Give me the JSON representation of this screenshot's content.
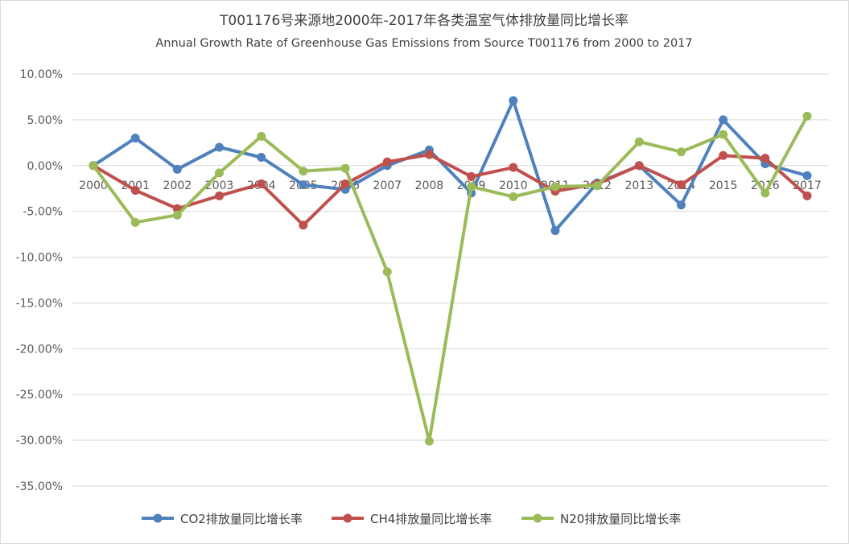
{
  "chart_data": {
    "type": "line",
    "title": "T001176号来源地2000年-2017年各类温室气体排放量同比增长率",
    "subtitle": "Annual Growth Rate of Greenhouse Gas Emissions from Source T001176 from 2000 to 2017",
    "xlabel": "",
    "ylabel": "",
    "ylim": [
      -0.35,
      0.1
    ],
    "y_ticks": [
      0.1,
      0.05,
      0.0,
      -0.05,
      -0.1,
      -0.15,
      -0.2,
      -0.25,
      -0.3,
      -0.35
    ],
    "y_tick_labels": [
      "10.00%",
      "5.00%",
      "0.00%",
      "-5.00%",
      "-10.00%",
      "-15.00%",
      "-20.00%",
      "-25.00%",
      "-30.00%",
      "-35.00%"
    ],
    "grid": true,
    "legend_position": "bottom",
    "categories": [
      "2000",
      "2001",
      "2002",
      "2003",
      "2004",
      "2005",
      "2006",
      "2007",
      "2008",
      "2009",
      "2010",
      "2011",
      "2012",
      "2013",
      "2014",
      "2015",
      "2016",
      "2017"
    ],
    "series": [
      {
        "name": "CO2排放量同比增长率",
        "color": "#4f81bd",
        "values": [
          0.0,
          0.03,
          -0.004,
          0.02,
          0.009,
          -0.021,
          -0.026,
          0.0,
          0.017,
          -0.03,
          0.071,
          -0.071,
          -0.019,
          0.0,
          -0.043,
          0.05,
          0.002,
          -0.011
        ]
      },
      {
        "name": "CH4排放量同比增长率",
        "color": "#c0504d",
        "values": [
          0.0,
          -0.027,
          -0.047,
          -0.033,
          -0.02,
          -0.065,
          -0.02,
          0.004,
          0.012,
          -0.012,
          -0.002,
          -0.028,
          -0.02,
          0.0,
          -0.021,
          0.011,
          0.008,
          -0.033
        ]
      },
      {
        "name": "N20排放量同比增长率",
        "color": "#9bbb59",
        "values": [
          0.0,
          -0.062,
          -0.054,
          -0.008,
          0.032,
          -0.006,
          -0.003,
          -0.116,
          -0.301,
          -0.023,
          -0.034,
          -0.023,
          -0.022,
          0.026,
          0.015,
          0.034,
          -0.03,
          0.054
        ]
      }
    ]
  }
}
